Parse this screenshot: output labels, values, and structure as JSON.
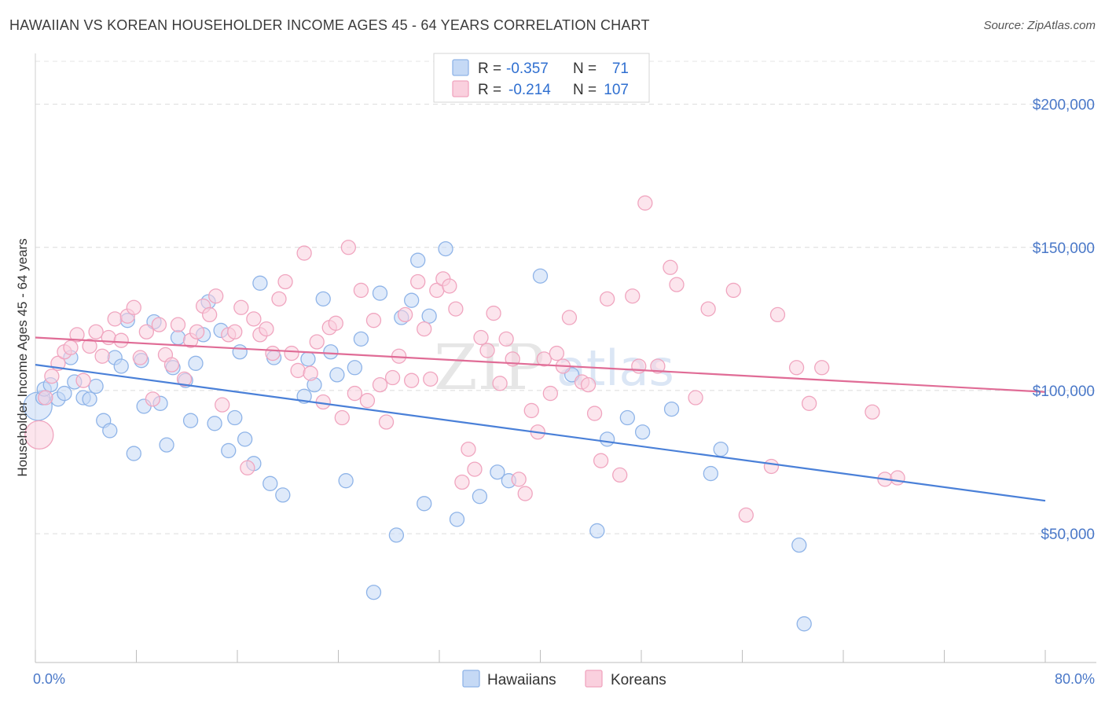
{
  "title": "HAWAIIAN VS KOREAN HOUSEHOLDER INCOME AGES 45 - 64 YEARS CORRELATION CHART",
  "source": "Source: ZipAtlas.com",
  "watermark": {
    "part1": "ZIP",
    "part2": "atlas"
  },
  "legend": {
    "r_label": "R =",
    "n_label": "N =",
    "rows": [
      {
        "series": "Hawaiians",
        "r": "-0.357",
        "n": "71",
        "color": "#8fb4e8",
        "fill": "#c5d9f5"
      },
      {
        "series": "Koreans",
        "r": "-0.214",
        "n": "107",
        "color": "#f0a5bf",
        "fill": "#fad0de"
      }
    ]
  },
  "chart_data": {
    "type": "scatter",
    "title": "HAWAIIAN VS KOREAN HOUSEHOLDER INCOME AGES 45 - 64 YEARS CORRELATION CHART",
    "xlabel": "",
    "ylabel": "Householder Income Ages 45 - 64 years",
    "xlim": [
      0,
      80
    ],
    "ylim": [
      5000,
      215000
    ],
    "x_tick_labels": [
      "0.0%",
      "80.0%"
    ],
    "y_ticks": [
      50000,
      100000,
      150000,
      200000
    ],
    "y_tick_labels": [
      "$50,000",
      "$100,000",
      "$150,000",
      "$200,000"
    ],
    "grid": true,
    "legend_position": "top-center",
    "series": [
      {
        "name": "Hawaiians",
        "color": "#4a80d8",
        "fill": "#c5d9f5",
        "trend": {
          "x": [
            0,
            80
          ],
          "y": [
            109000,
            61500
          ]
        },
        "points": [
          [
            0.2,
            94500
          ],
          [
            0.6,
            97500
          ],
          [
            0.7,
            100500
          ],
          [
            1.2,
            102000
          ],
          [
            1.8,
            97000
          ],
          [
            2.3,
            99000
          ],
          [
            2.8,
            111500
          ],
          [
            3.1,
            103000
          ],
          [
            3.8,
            97500
          ],
          [
            4.3,
            97000
          ],
          [
            4.8,
            101500
          ],
          [
            5.4,
            89500
          ],
          [
            5.9,
            86000
          ],
          [
            6.3,
            111500
          ],
          [
            6.8,
            108500
          ],
          [
            7.3,
            124500
          ],
          [
            7.8,
            78000
          ],
          [
            8.4,
            110500
          ],
          [
            8.6,
            94500
          ],
          [
            9.4,
            124000
          ],
          [
            9.9,
            95500
          ],
          [
            10.4,
            81000
          ],
          [
            10.9,
            108000
          ],
          [
            11.3,
            118500
          ],
          [
            11.9,
            103500
          ],
          [
            12.3,
            89500
          ],
          [
            12.7,
            109500
          ],
          [
            13.3,
            119500
          ],
          [
            13.7,
            131000
          ],
          [
            14.2,
            88500
          ],
          [
            14.7,
            121000
          ],
          [
            15.3,
            79000
          ],
          [
            15.8,
            90500
          ],
          [
            16.2,
            113500
          ],
          [
            16.6,
            83000
          ],
          [
            17.3,
            74500
          ],
          [
            17.8,
            137500
          ],
          [
            18.6,
            67500
          ],
          [
            18.9,
            111500
          ],
          [
            19.6,
            63500
          ],
          [
            21.3,
            98000
          ],
          [
            21.6,
            111000
          ],
          [
            22.1,
            102000
          ],
          [
            22.8,
            132000
          ],
          [
            23.4,
            113500
          ],
          [
            23.9,
            105500
          ],
          [
            24.6,
            68500
          ],
          [
            25.3,
            108000
          ],
          [
            25.8,
            118000
          ],
          [
            26.8,
            29500
          ],
          [
            27.3,
            134000
          ],
          [
            28.6,
            49500
          ],
          [
            29.0,
            125500
          ],
          [
            29.8,
            131500
          ],
          [
            30.3,
            145500
          ],
          [
            30.8,
            60500
          ],
          [
            31.2,
            126000
          ],
          [
            32.5,
            149500
          ],
          [
            33.4,
            55000
          ],
          [
            35.2,
            63000
          ],
          [
            36.6,
            71500
          ],
          [
            37.5,
            68500
          ],
          [
            40.0,
            140000
          ],
          [
            42.5,
            105500
          ],
          [
            44.5,
            51000
          ],
          [
            45.3,
            83000
          ],
          [
            46.9,
            90500
          ],
          [
            48.1,
            85500
          ],
          [
            50.4,
            93500
          ],
          [
            53.5,
            71000
          ],
          [
            54.3,
            79500
          ],
          [
            60.5,
            46000
          ],
          [
            60.9,
            18500
          ]
        ]
      },
      {
        "name": "Koreans",
        "color": "#e06c96",
        "fill": "#fad0de",
        "trend": {
          "x": [
            0,
            80
          ],
          "y": [
            118500,
            99500
          ]
        },
        "points": [
          [
            0.3,
            84500
          ],
          [
            0.8,
            97500
          ],
          [
            1.3,
            105000
          ],
          [
            1.8,
            109500
          ],
          [
            2.3,
            113500
          ],
          [
            2.8,
            115000
          ],
          [
            3.3,
            119500
          ],
          [
            3.8,
            103500
          ],
          [
            4.3,
            115500
          ],
          [
            4.8,
            120500
          ],
          [
            5.3,
            112000
          ],
          [
            5.8,
            118500
          ],
          [
            6.3,
            125000
          ],
          [
            6.8,
            117500
          ],
          [
            7.3,
            126000
          ],
          [
            7.8,
            129000
          ],
          [
            8.3,
            111500
          ],
          [
            8.8,
            120500
          ],
          [
            9.3,
            97000
          ],
          [
            9.8,
            123000
          ],
          [
            10.3,
            112500
          ],
          [
            10.8,
            109000
          ],
          [
            11.3,
            123000
          ],
          [
            11.8,
            104000
          ],
          [
            12.3,
            117500
          ],
          [
            12.8,
            120500
          ],
          [
            13.3,
            129500
          ],
          [
            13.8,
            126500
          ],
          [
            14.3,
            133000
          ],
          [
            14.8,
            95000
          ],
          [
            15.3,
            119500
          ],
          [
            15.8,
            120500
          ],
          [
            16.3,
            129000
          ],
          [
            16.8,
            73000
          ],
          [
            17.3,
            125000
          ],
          [
            17.8,
            119500
          ],
          [
            18.3,
            121500
          ],
          [
            18.8,
            113000
          ],
          [
            19.3,
            132000
          ],
          [
            19.8,
            138000
          ],
          [
            20.3,
            113000
          ],
          [
            20.8,
            107000
          ],
          [
            21.3,
            148000
          ],
          [
            21.8,
            106000
          ],
          [
            22.3,
            117000
          ],
          [
            22.8,
            96000
          ],
          [
            23.3,
            122000
          ],
          [
            23.8,
            123500
          ],
          [
            24.3,
            90500
          ],
          [
            24.8,
            150000
          ],
          [
            25.3,
            99000
          ],
          [
            25.8,
            135000
          ],
          [
            26.3,
            96500
          ],
          [
            26.8,
            124500
          ],
          [
            27.3,
            102000
          ],
          [
            27.8,
            89000
          ],
          [
            28.3,
            104500
          ],
          [
            28.8,
            112000
          ],
          [
            29.3,
            126500
          ],
          [
            29.8,
            103500
          ],
          [
            30.3,
            138000
          ],
          [
            30.8,
            121500
          ],
          [
            31.3,
            104000
          ],
          [
            31.8,
            135000
          ],
          [
            32.3,
            139000
          ],
          [
            32.8,
            136500
          ],
          [
            33.3,
            128500
          ],
          [
            33.8,
            68000
          ],
          [
            34.3,
            79500
          ],
          [
            34.8,
            72500
          ],
          [
            35.3,
            118500
          ],
          [
            35.8,
            114000
          ],
          [
            36.3,
            127000
          ],
          [
            36.8,
            102500
          ],
          [
            37.3,
            118000
          ],
          [
            37.8,
            111000
          ],
          [
            38.3,
            69000
          ],
          [
            38.8,
            64000
          ],
          [
            39.3,
            93000
          ],
          [
            39.8,
            85500
          ],
          [
            40.3,
            111000
          ],
          [
            40.8,
            99000
          ],
          [
            41.3,
            113000
          ],
          [
            41.8,
            108500
          ],
          [
            42.3,
            125500
          ],
          [
            43.3,
            103000
          ],
          [
            43.8,
            102000
          ],
          [
            44.3,
            92000
          ],
          [
            44.8,
            75500
          ],
          [
            45.3,
            132000
          ],
          [
            46.3,
            70500
          ],
          [
            47.3,
            133000
          ],
          [
            47.8,
            108500
          ],
          [
            48.3,
            165500
          ],
          [
            49.3,
            108500
          ],
          [
            50.3,
            143000
          ],
          [
            50.8,
            137000
          ],
          [
            52.3,
            97500
          ],
          [
            53.3,
            128500
          ],
          [
            55.3,
            135000
          ],
          [
            56.3,
            56500
          ],
          [
            58.3,
            73500
          ],
          [
            58.8,
            126500
          ],
          [
            60.3,
            108000
          ],
          [
            61.3,
            95500
          ],
          [
            62.3,
            108000
          ],
          [
            66.3,
            92500
          ],
          [
            67.3,
            69000
          ],
          [
            68.3,
            69500
          ]
        ]
      }
    ]
  }
}
